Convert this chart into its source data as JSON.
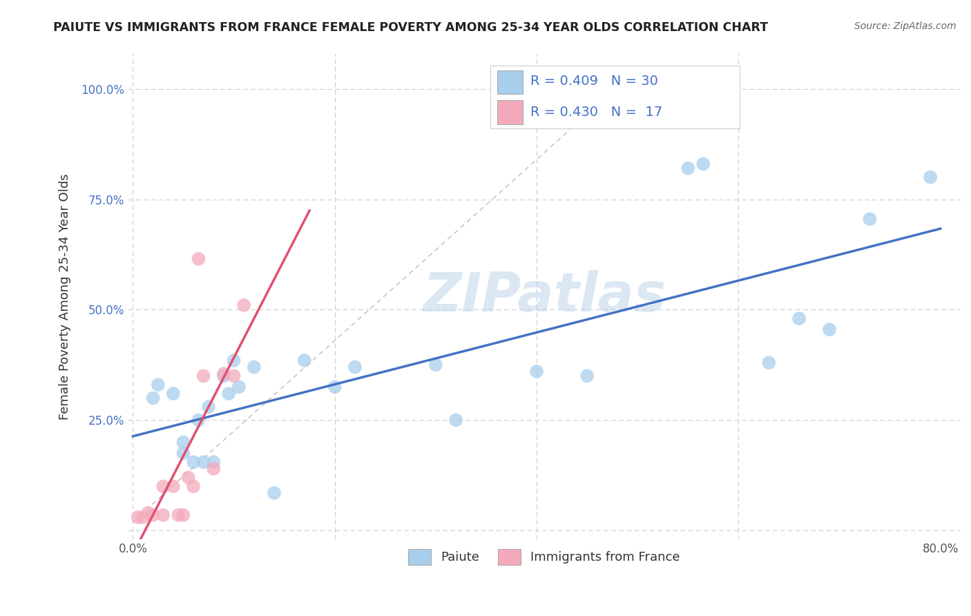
{
  "title": "PAIUTE VS IMMIGRANTS FROM FRANCE FEMALE POVERTY AMONG 25-34 YEAR OLDS CORRELATION CHART",
  "source": "Source: ZipAtlas.com",
  "xlabel": "",
  "ylabel": "Female Poverty Among 25-34 Year Olds",
  "xlim": [
    -0.005,
    0.82
  ],
  "ylim": [
    -0.02,
    1.08
  ],
  "xticks": [
    0.0,
    0.2,
    0.4,
    0.6,
    0.8
  ],
  "xtick_labels": [
    "0.0%",
    "",
    "",
    "",
    "80.0%"
  ],
  "ytick_labels": [
    "",
    "25.0%",
    "50.0%",
    "75.0%",
    "100.0%"
  ],
  "yticks": [
    0.0,
    0.25,
    0.5,
    0.75,
    1.0
  ],
  "paiute_color": "#A8CEED",
  "france_color": "#F4AABB",
  "paiute_line_color": "#4472C4",
  "france_line_color": "#E05070",
  "watermark": "ZIPatlas",
  "legend_R_paiute": "0.409",
  "legend_N_paiute": "30",
  "legend_R_france": "0.430",
  "legend_N_france": "17",
  "paiute_x": [
    0.02,
    0.025,
    0.04,
    0.05,
    0.05,
    0.06,
    0.065,
    0.07,
    0.075,
    0.08,
    0.09,
    0.095,
    0.1,
    0.105,
    0.12,
    0.14,
    0.17,
    0.2,
    0.22,
    0.3,
    0.32,
    0.4,
    0.45,
    0.55,
    0.565,
    0.63,
    0.66,
    0.69,
    0.73,
    0.79
  ],
  "paiute_y": [
    0.3,
    0.33,
    0.31,
    0.2,
    0.175,
    0.155,
    0.25,
    0.155,
    0.28,
    0.155,
    0.35,
    0.31,
    0.385,
    0.325,
    0.37,
    0.085,
    0.385,
    0.325,
    0.37,
    0.375,
    0.25,
    0.36,
    0.35,
    0.82,
    0.83,
    0.38,
    0.48,
    0.455,
    0.705,
    0.8
  ],
  "france_x": [
    0.005,
    0.01,
    0.015,
    0.02,
    0.03,
    0.03,
    0.04,
    0.045,
    0.05,
    0.055,
    0.06,
    0.065,
    0.07,
    0.08,
    0.09,
    0.1,
    0.11
  ],
  "france_y": [
    0.03,
    0.03,
    0.04,
    0.035,
    0.035,
    0.1,
    0.1,
    0.035,
    0.035,
    0.12,
    0.1,
    0.615,
    0.35,
    0.14,
    0.355,
    0.35,
    0.51
  ],
  "background_color": "#FFFFFF",
  "grid_color": "#CCCCCC"
}
